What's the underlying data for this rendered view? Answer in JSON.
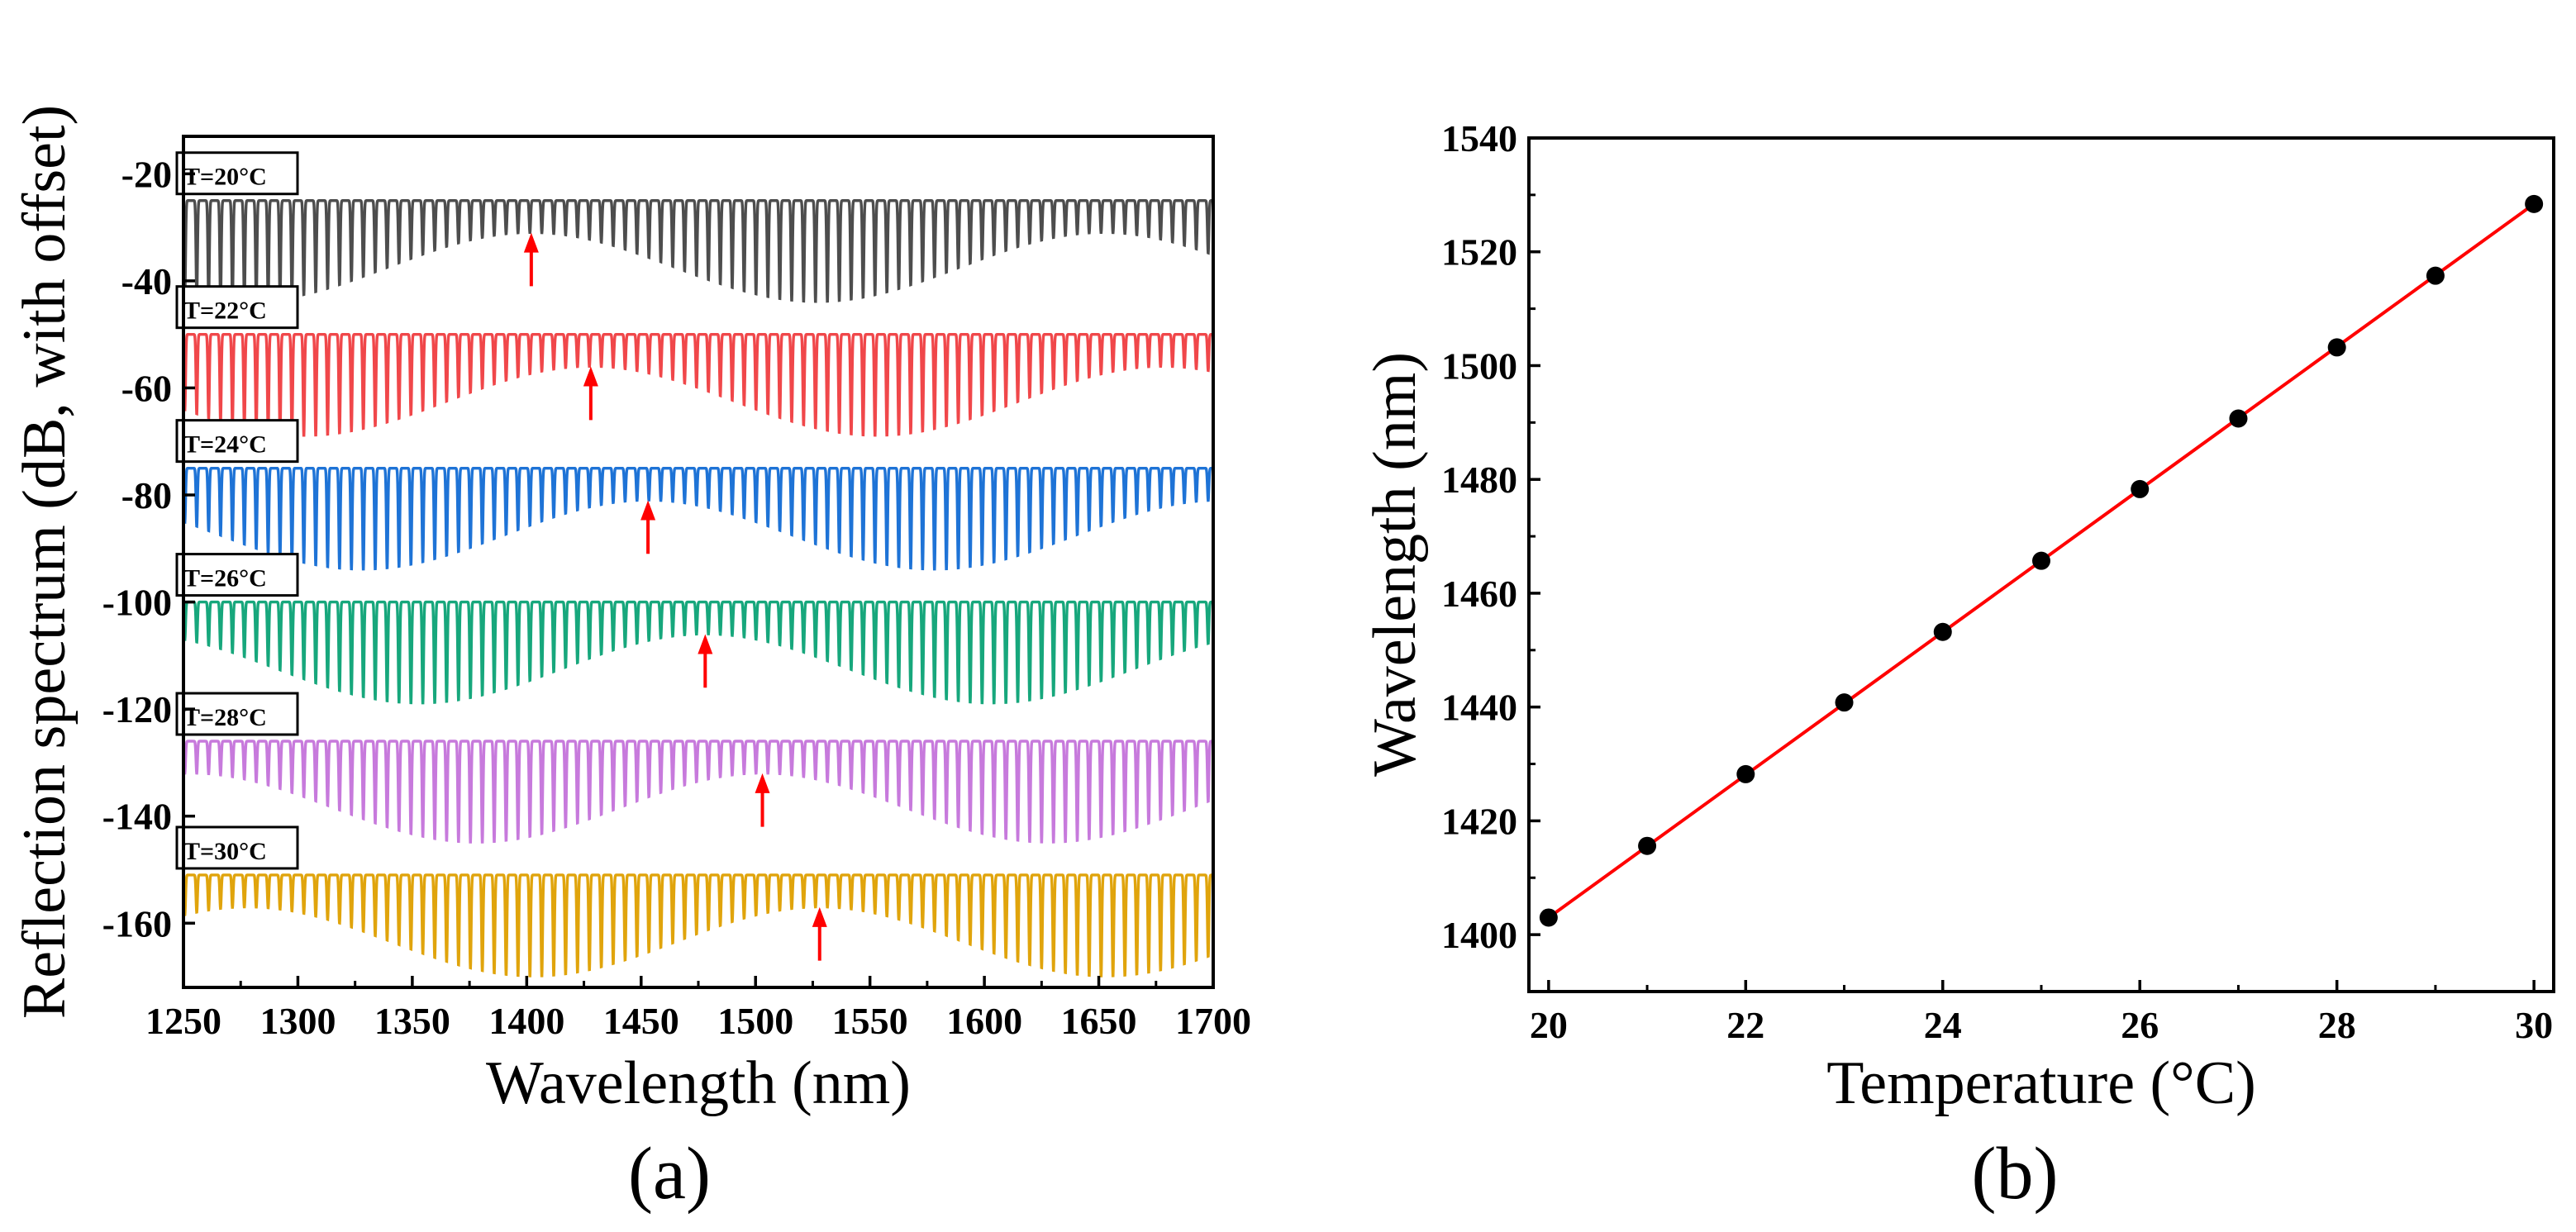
{
  "chart_data": [
    {
      "panel_label": "(a)",
      "type": "line",
      "title": "",
      "xlabel": "Wavelength (nm)",
      "ylabel": "Reflection spectrum (dB, with offset)",
      "xlim": [
        1250,
        1700
      ],
      "ylim": [
        -172,
        -13
      ],
      "xticks": [
        "1250",
        "1300",
        "1350",
        "1400",
        "1450",
        "1500",
        "1550",
        "1600",
        "1650",
        "1700"
      ],
      "yticks": [
        "-20",
        "-40",
        "-60",
        "-80",
        "-100",
        "-120",
        "-140",
        "-160"
      ],
      "ytick_values": [
        -20,
        -40,
        -60,
        -80,
        -100,
        -120,
        -140,
        -160
      ],
      "fringe_period_nm": 5.2,
      "envelope_period_nm": 250,
      "series": [
        {
          "name": "T=20°C",
          "color": "#4d4d4d",
          "top_db": -25,
          "deep_dip_db": -44,
          "shallow_dip_db": -31,
          "envelope_center_nm": 1402,
          "arrow_nm": 1402
        },
        {
          "name": "T=22°C",
          "color": "#f0474a",
          "top_db": -50,
          "deep_dip_db": -69,
          "shallow_dip_db": -56,
          "envelope_center_nm": 1428,
          "arrow_nm": 1428
        },
        {
          "name": "T=24°C",
          "color": "#1e73d6",
          "top_db": -75,
          "deep_dip_db": -94,
          "shallow_dip_db": -81,
          "envelope_center_nm": 1453,
          "arrow_nm": 1453
        },
        {
          "name": "T=26°C",
          "color": "#17a77c",
          "top_db": -100,
          "deep_dip_db": -119,
          "shallow_dip_db": -106,
          "envelope_center_nm": 1478,
          "arrow_nm": 1478
        },
        {
          "name": "T=28°C",
          "color": "#c77adc",
          "top_db": -126,
          "deep_dip_db": -145,
          "shallow_dip_db": -132,
          "envelope_center_nm": 1503,
          "arrow_nm": 1503
        },
        {
          "name": "T=30°C",
          "color": "#e0a40c",
          "top_db": -151,
          "deep_dip_db": -170,
          "shallow_dip_db": -157,
          "envelope_center_nm": 1528,
          "arrow_nm": 1528
        }
      ],
      "arrow_color": "#ff0000"
    },
    {
      "panel_label": "(b)",
      "type": "scatter",
      "title": "",
      "xlabel": "Temperature (°C)",
      "ylabel": "Wavelength (nm)",
      "xlim": [
        19.8,
        30.2
      ],
      "ylim": [
        1390,
        1540
      ],
      "xticks": [
        "20",
        "22",
        "24",
        "26",
        "28",
        "30"
      ],
      "xtick_values": [
        20,
        22,
        24,
        26,
        28,
        30
      ],
      "yticks": [
        "1400",
        "1420",
        "1440",
        "1460",
        "1480",
        "1500",
        "1520",
        "1540"
      ],
      "ytick_values": [
        1400,
        1420,
        1440,
        1460,
        1480,
        1500,
        1520,
        1540
      ],
      "x": [
        20,
        21,
        22,
        23,
        24,
        25,
        26,
        27,
        28,
        29,
        30
      ],
      "y": [
        1403.0,
        1415.6,
        1428.2,
        1440.8,
        1453.2,
        1465.7,
        1478.3,
        1490.7,
        1503.2,
        1515.8,
        1528.4
      ],
      "fit_line": {
        "x": [
          20,
          30
        ],
        "y": [
          1403.0,
          1528.4
        ],
        "color": "#ff0000"
      },
      "marker_color": "#000000"
    }
  ]
}
